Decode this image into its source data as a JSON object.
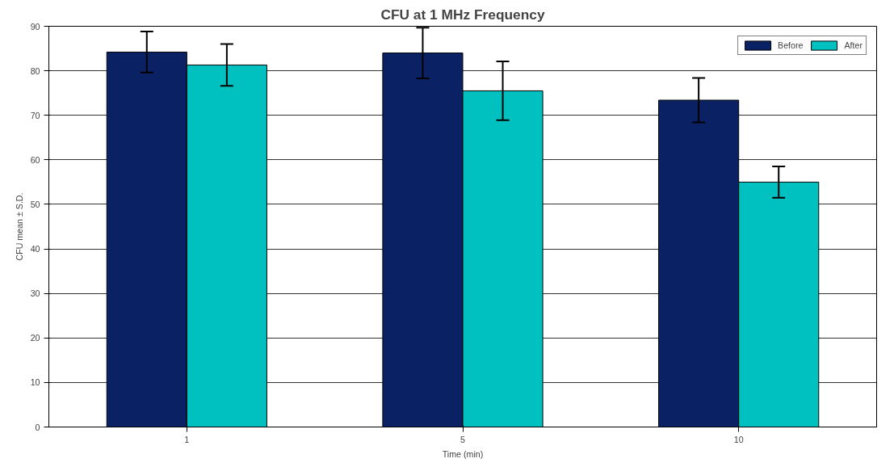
{
  "chart_data": {
    "type": "bar",
    "title": "CFU at 1 MHz Frequency",
    "xlabel": "Time (min)",
    "ylabel": "CFU mean ± S.D.",
    "categories": [
      "1",
      "5",
      "10"
    ],
    "series": [
      {
        "name": "Before",
        "color": "#0a2264",
        "values": [
          84.2,
          84.0,
          73.4
        ],
        "errors": [
          4.6,
          5.7,
          5.0
        ]
      },
      {
        "name": "After",
        "color": "#00c0c0",
        "values": [
          81.3,
          75.5,
          55.0
        ],
        "errors": [
          4.7,
          6.6,
          3.5
        ]
      }
    ],
    "ylim": [
      0,
      90
    ],
    "yticks": [
      0,
      10,
      20,
      30,
      40,
      50,
      60,
      70,
      80,
      90
    ],
    "grid": "y",
    "legend": "top right"
  }
}
